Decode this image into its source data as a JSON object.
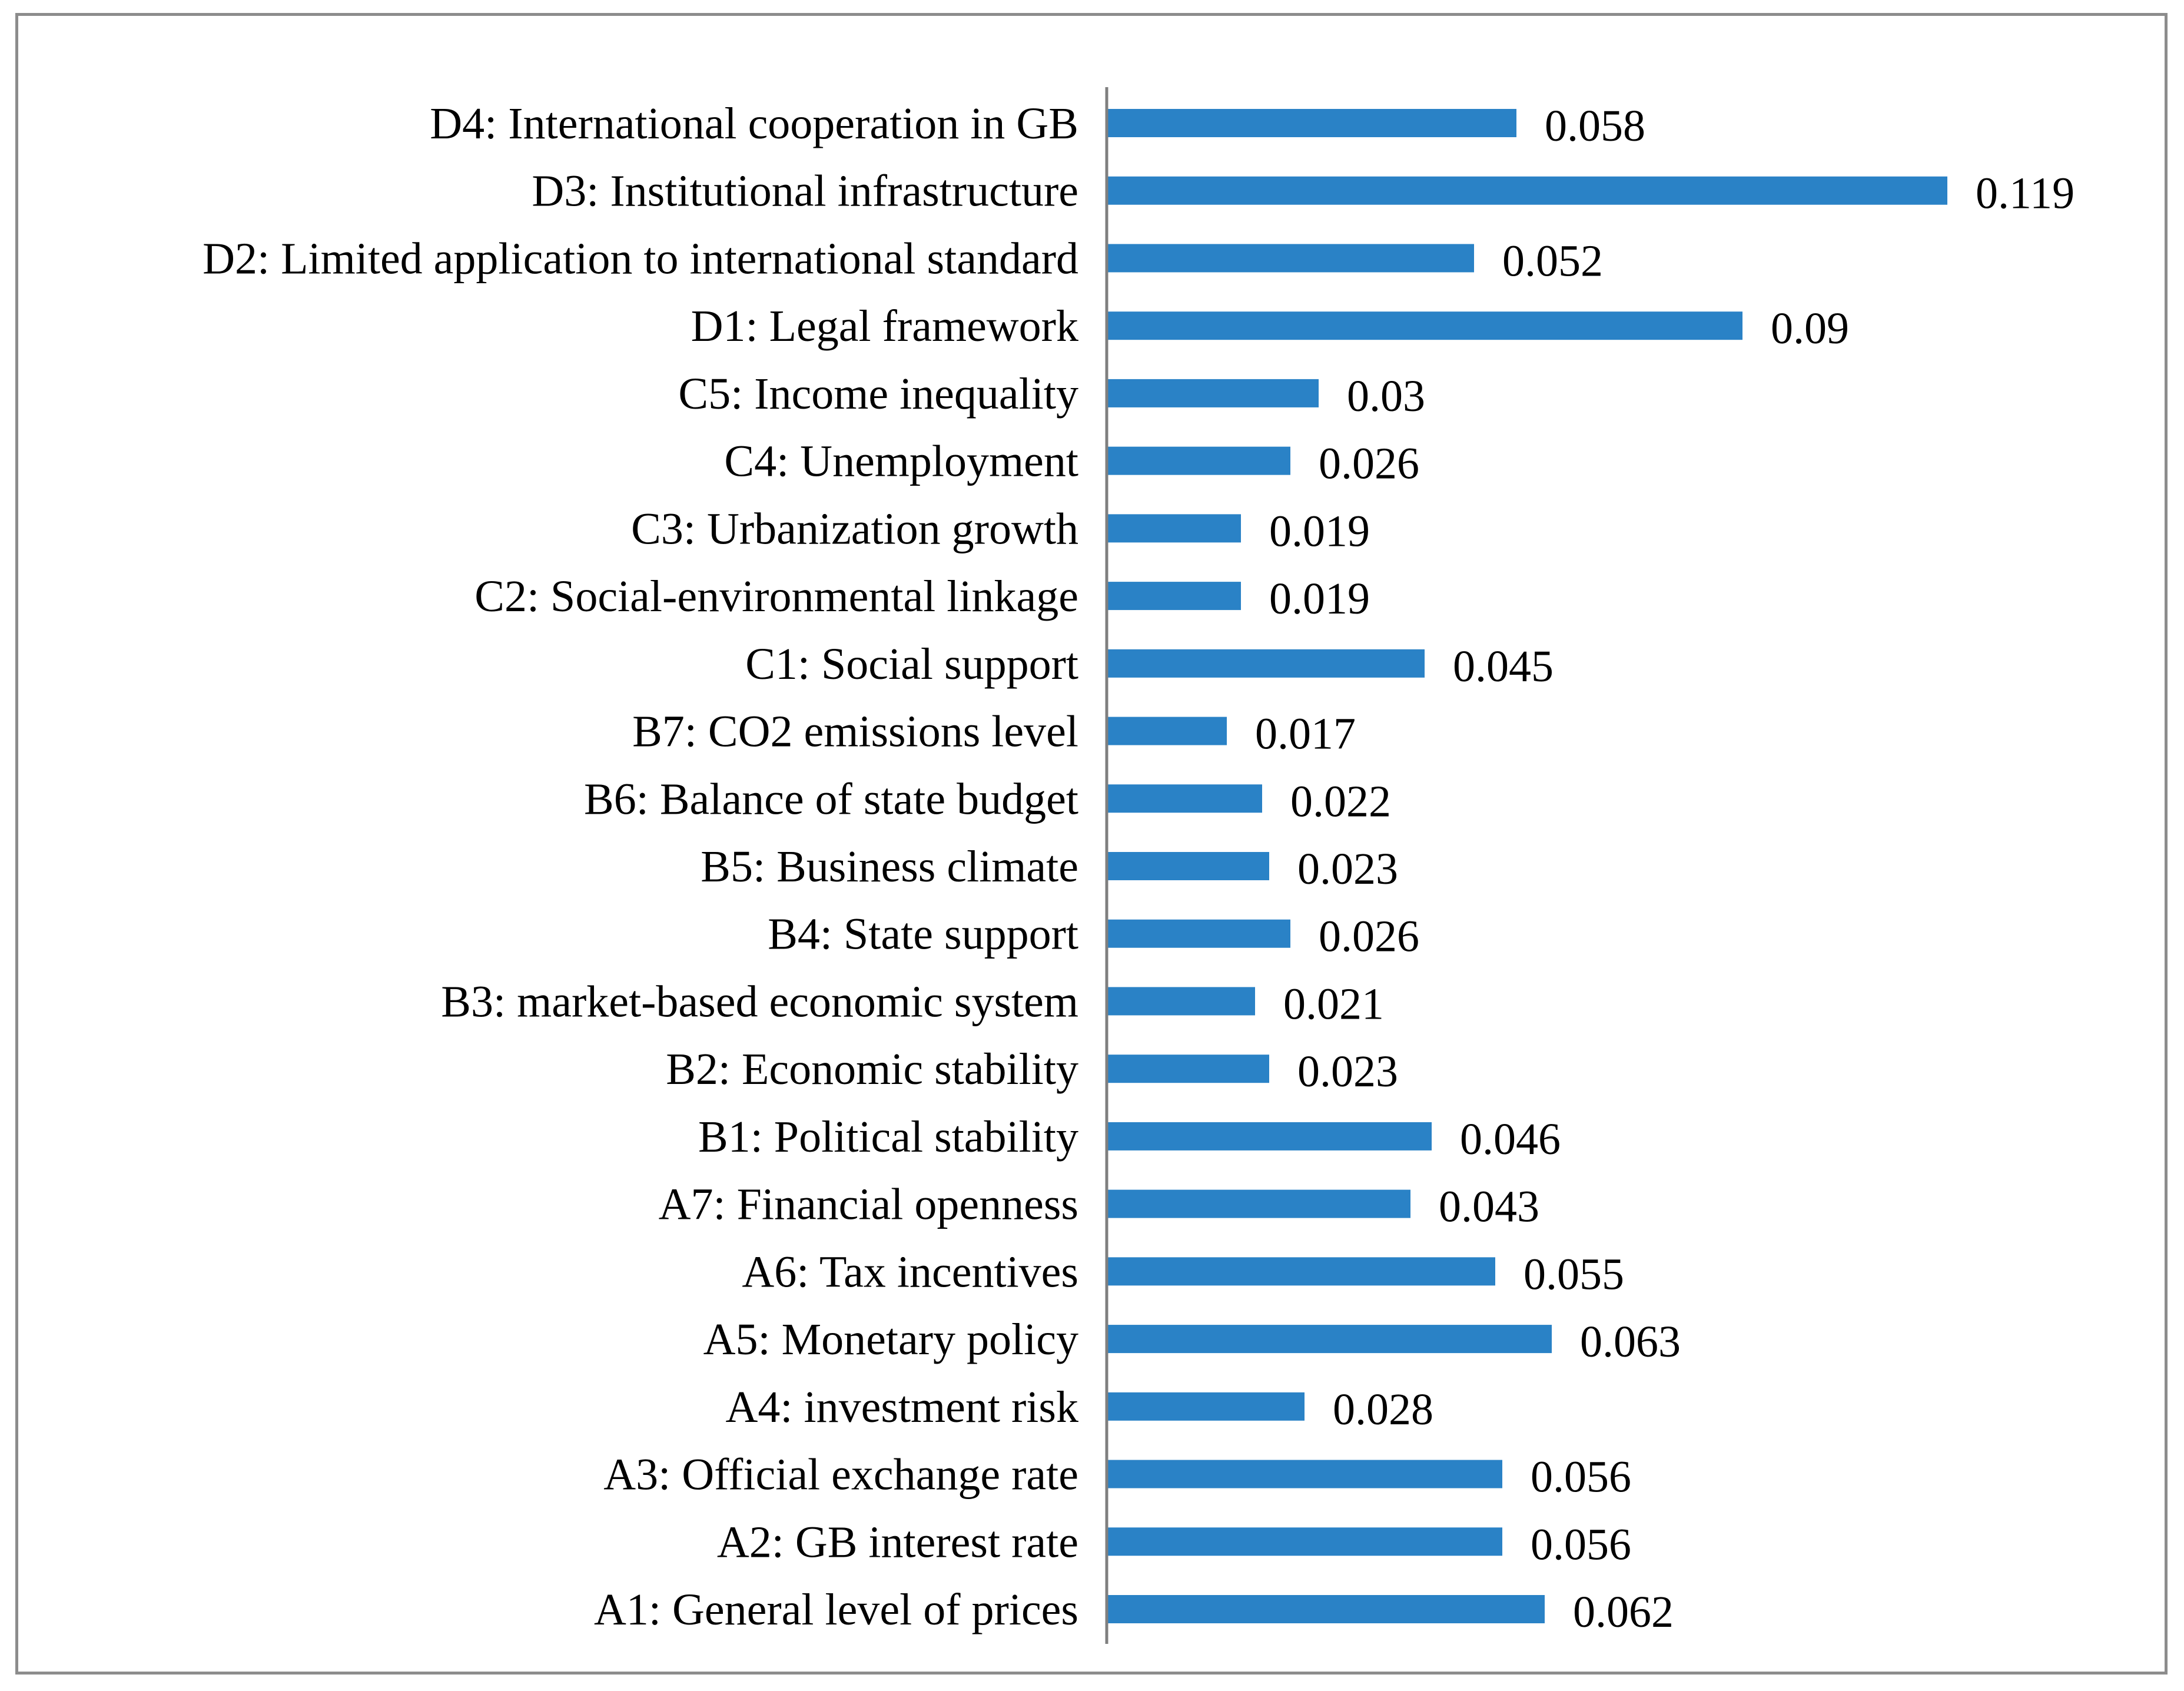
{
  "chart_data": {
    "type": "bar",
    "orientation": "horizontal",
    "categories": [
      "A1: General level of prices",
      "A2: GB interest rate",
      "A3: Official exchange rate",
      "A4: investment risk",
      "A5: Monetary policy",
      "A6: Tax incentives",
      "A7: Financial openness",
      "B1: Political stability",
      "B2: Economic stability",
      "B3: market-based economic system",
      "B4: State support",
      "B5: Business climate",
      "B6: Balance of state budget",
      "B7: CO2 emissions level",
      "C1: Social support",
      "C2: Social-environmental linkage",
      "C3: Urbanization growth",
      "C4: Unemployment",
      "C5: Income inequality",
      "D1: Legal framework",
      "D2: Limited application to international standard",
      "D3: Institutional infrastructure",
      "D4: International cooperation in GB"
    ],
    "values": [
      0.062,
      0.056,
      0.056,
      0.028,
      0.063,
      0.055,
      0.043,
      0.046,
      0.023,
      0.021,
      0.026,
      0.023,
      0.022,
      0.017,
      0.045,
      0.019,
      0.019,
      0.026,
      0.03,
      0.09,
      0.052,
      0.119,
      0.058
    ],
    "value_labels": [
      "0.062",
      "0.056",
      "0.056",
      "0.028",
      "0.063",
      "0.055",
      "0.043",
      "0.046",
      "0.023",
      "0.021",
      "0.026",
      "0.023",
      "0.022",
      "0.017",
      "0.045",
      "0.019",
      "0.019",
      "0.026",
      "0.03",
      "0.09",
      "0.052",
      "0.119",
      "0.058"
    ],
    "category_order": "first category at bottom",
    "xlim": [
      0,
      0.119
    ],
    "x_axis_visible": false,
    "grid": false,
    "legend": "none",
    "bar_color": "#2a82c6",
    "axis_color": "#7f7f7f"
  }
}
